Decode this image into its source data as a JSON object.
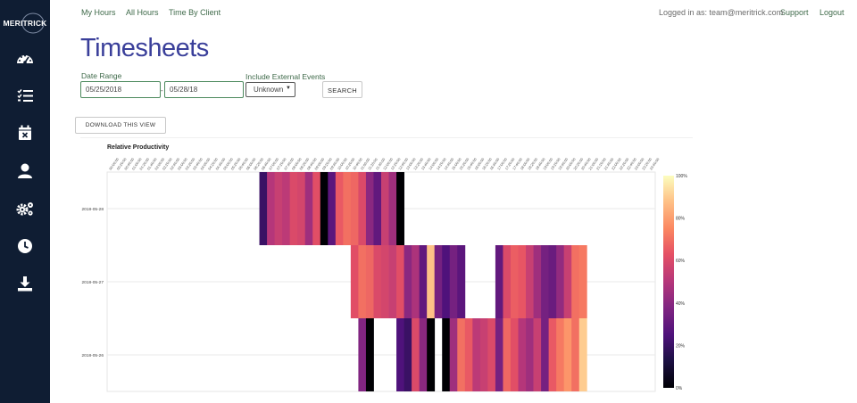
{
  "brand": {
    "logo_text": "MERITRICK"
  },
  "sidebar": {
    "items": [
      {
        "icon": "dashboard-icon"
      },
      {
        "icon": "task-list-icon"
      },
      {
        "icon": "calendar-icon"
      },
      {
        "icon": "user-icon"
      },
      {
        "icon": "settings-icon"
      },
      {
        "icon": "clock-icon"
      },
      {
        "icon": "download-icon"
      }
    ]
  },
  "topnav": {
    "my_hours": "My Hours",
    "all_hours": "All Hours",
    "time_by_client": "Time By Client",
    "logged_in": "Logged in as: team@meritrick.com",
    "support": "Support",
    "logout": "Logout"
  },
  "page": {
    "title": "Timesheets"
  },
  "filters": {
    "date_range_label": "Date Range",
    "start_date": "05/25/2018",
    "end_date": "05/28/18",
    "date_separator": "-",
    "external_label": "Include External Events",
    "external_value": "Unknown",
    "search_label": "SEARCH"
  },
  "download_label": "DOWNLOAD THIS VIEW",
  "colors": {
    "accent": "#3f6a4a",
    "title": "#3a3f9a",
    "sidebar": "#0f1d33"
  },
  "chart_data": {
    "type": "heatmap",
    "title": "Relative Productivity",
    "colorscale": "magma",
    "colorbar_ticks": [
      "100%",
      "80%",
      "60%",
      "40%",
      "20%",
      "0%"
    ],
    "y_categories": [
      "2018-05-28",
      "2018-05-27",
      "2018-05-26"
    ],
    "x_start": "00:00",
    "x_step_minutes": 20,
    "x_count": 72,
    "rows": [
      {
        "day": "2018-05-28",
        "start_index": 20,
        "values": [
          20,
          50,
          55,
          52,
          60,
          58,
          45,
          62,
          0,
          28,
          65,
          70,
          68,
          60,
          40,
          30,
          55,
          45,
          0
        ]
      },
      {
        "day": "2018-05-27",
        "start_index": 32,
        "values": [
          62,
          70,
          68,
          60,
          58,
          55,
          62,
          40,
          48,
          30,
          88,
          35,
          25,
          35,
          28,
          null,
          null,
          null,
          null,
          30,
          60,
          66,
          64,
          55,
          45,
          35,
          32,
          42,
          55,
          70,
          72
        ]
      },
      {
        "day": "2018-05-26",
        "start_index": 33,
        "values": [
          38,
          0,
          null,
          null,
          null,
          25,
          20,
          60,
          40,
          0,
          null,
          0,
          45,
          70,
          65,
          52,
          55,
          60,
          35,
          68,
          62,
          50,
          45,
          55,
          35,
          65,
          72,
          78,
          70,
          90
        ]
      }
    ]
  }
}
